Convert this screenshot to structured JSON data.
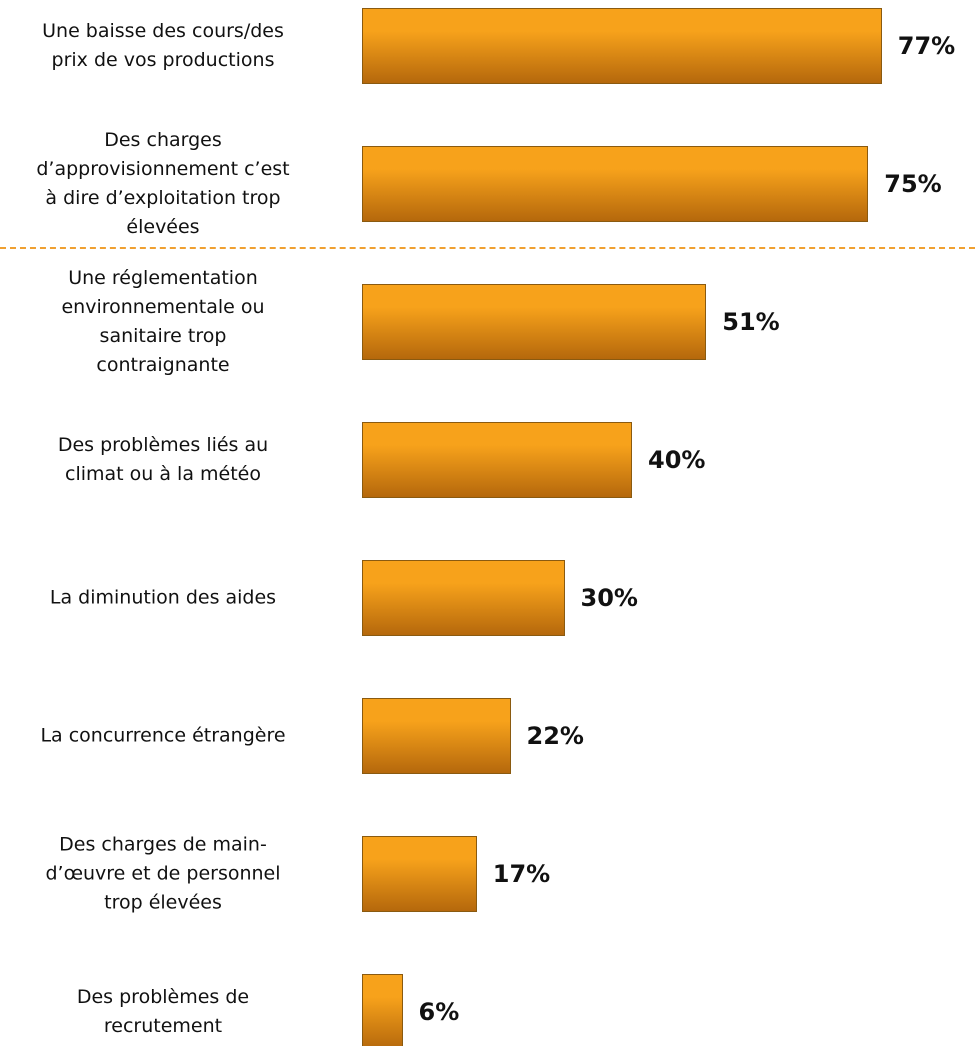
{
  "chart_data": {
    "type": "barh",
    "categories": [
      "Une baisse des cours/des\nprix de vos productions",
      "Des charges\nd’approvisionnement c’est\nà dire d’exploitation trop\nélevées",
      "Une réglementation\nenvironnementale ou\nsanitaire trop\ncontraignante",
      "Des problèmes liés au\nclimat ou à la météo",
      "La diminution des aides",
      "La concurrence étrangère",
      "Des charges de main-\nd’œuvre et de personnel\ntrop élevées",
      "Des problèmes de\nrecrutement"
    ],
    "values": [
      77,
      75,
      51,
      40,
      30,
      22,
      17,
      6
    ],
    "value_labels": [
      "77%",
      "75%",
      "51%",
      "40%",
      "30%",
      "22%",
      "17%",
      "6%"
    ],
    "color": "#f7a21b",
    "xlim": [
      0,
      100
    ]
  }
}
